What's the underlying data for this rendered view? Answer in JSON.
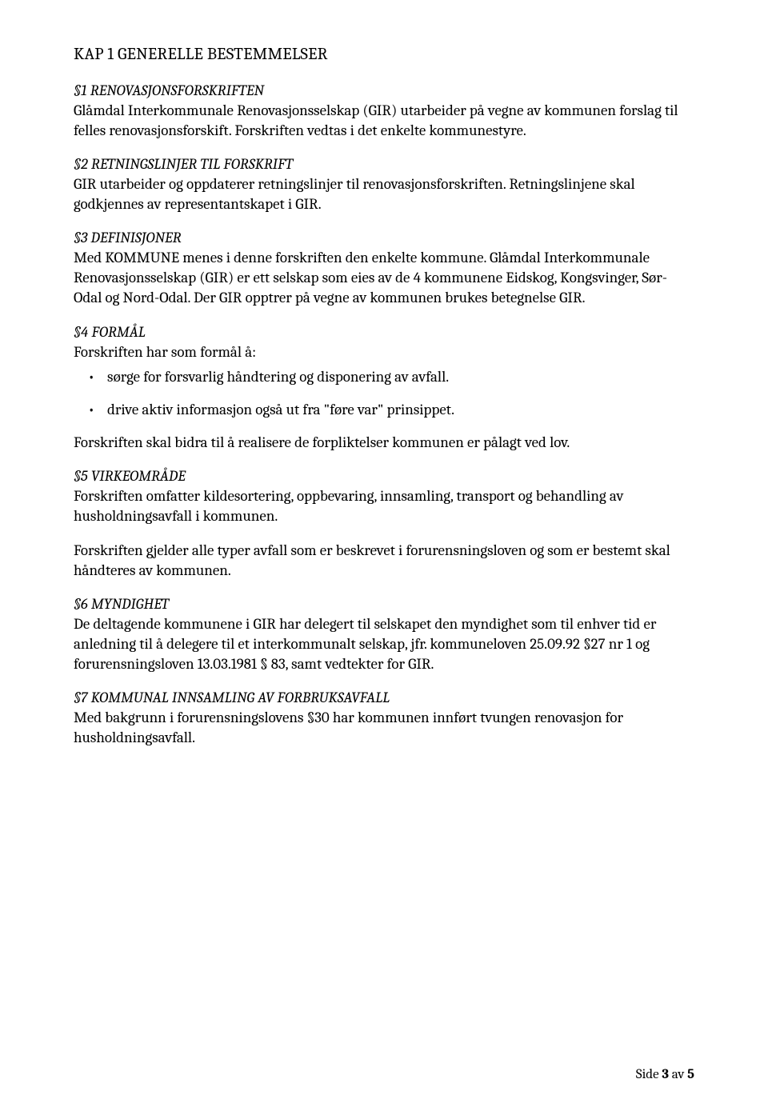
{
  "kap_title_prefix": "K",
  "kap_title_rest": "AP 1 GENERELLE BESTEMMELSER",
  "s1": {
    "title": "§1 RENOVASJONSFORSKRIFTEN",
    "body": "Glåmdal Interkommunale Renovasjonsselskap (GIR) utarbeider på vegne av kommunen forslag til felles renovasjonsforskift. Forskriften vedtas i det enkelte kommunestyre."
  },
  "s2": {
    "title": "§2 RETNINGSLINJER TIL FORSKRIFT",
    "body": "GIR utarbeider og oppdaterer retningslinjer til renovasjonsforskriften. Retningslinjene skal godkjennes av representantskapet i GIR."
  },
  "s3": {
    "title": "§3 DEFINISJONER",
    "body": "Med KOMMUNE menes i denne forskriften den enkelte kommune. Glåmdal Interkommunale Renovasjonsselskap (GIR) er ett selskap som eies av de 4 kommunene Eidskog, Kongsvinger, Sør-Odal og Nord-Odal. Der GIR opptrer på vegne av kommunen brukes betegnelse GIR."
  },
  "s4": {
    "title": "§4 FORMÅL",
    "lead": "Forskriften har som formål å:",
    "bullets": [
      "sørge for forsvarlig håndtering og disponering av avfall.",
      "drive aktiv informasjon også ut fra \"føre var\" prinsippet."
    ],
    "after": "Forskriften skal bidra til å realisere de forpliktelser kommunen er pålagt ved lov."
  },
  "s5": {
    "title": "§5 VIRKEOMRÅDE",
    "p1": "Forskriften omfatter kildesortering, oppbevaring, innsamling, transport og behandling av husholdningsavfall i kommunen.",
    "p2": "Forskriften gjelder alle typer avfall som er beskrevet i forurensningsloven og som er bestemt skal håndteres av kommunen."
  },
  "s6": {
    "title": "§6 MYNDIGHET",
    "body": "De deltagende kommunene i GIR har delegert til selskapet den myndighet som til enhver tid er anledning til å delegere til et interkommunalt selskap, jfr. kommuneloven 25.09.92 §27 nr 1 og forurensningsloven 13.03.1981 § 83, samt vedtekter for GIR."
  },
  "s7": {
    "title": "§7 KOMMUNAL INNSAMLING AV FORBRUKSAVFALL",
    "body": "Med bakgrunn i forurensningslovens §30 har kommunen innført tvungen renovasjon for husholdningsavfall."
  },
  "footer_prefix": "Side ",
  "footer_page": "3",
  "footer_mid": " av ",
  "footer_total": "5"
}
